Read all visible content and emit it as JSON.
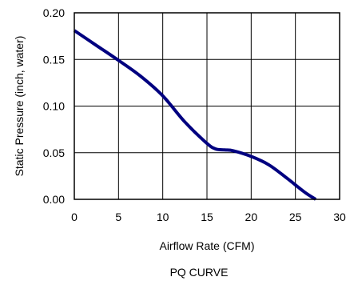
{
  "chart_data": {
    "type": "line",
    "title": "PQ CURVE",
    "xlabel": "Airflow Rate (CFM)",
    "ylabel": "Static Pressure (inch, water)",
    "xlim": [
      0,
      30
    ],
    "ylim": [
      0,
      0.2
    ],
    "x_ticks": [
      "0",
      "5",
      "10",
      "15",
      "20",
      "25",
      "30"
    ],
    "y_ticks": [
      "0.00",
      "0.05",
      "0.10",
      "0.15",
      "0.20"
    ],
    "grid": true,
    "series_color": "#000080",
    "series": [
      {
        "x": [
          0,
          2.5,
          5,
          7.5,
          10,
          12.5,
          15,
          16,
          17,
          18,
          20,
          22,
          24,
          26,
          27.3
        ],
        "y": [
          0.181,
          0.165,
          0.149,
          0.132,
          0.111,
          0.083,
          0.06,
          0.054,
          0.053,
          0.052,
          0.046,
          0.037,
          0.023,
          0.008,
          0.0
        ]
      }
    ]
  }
}
